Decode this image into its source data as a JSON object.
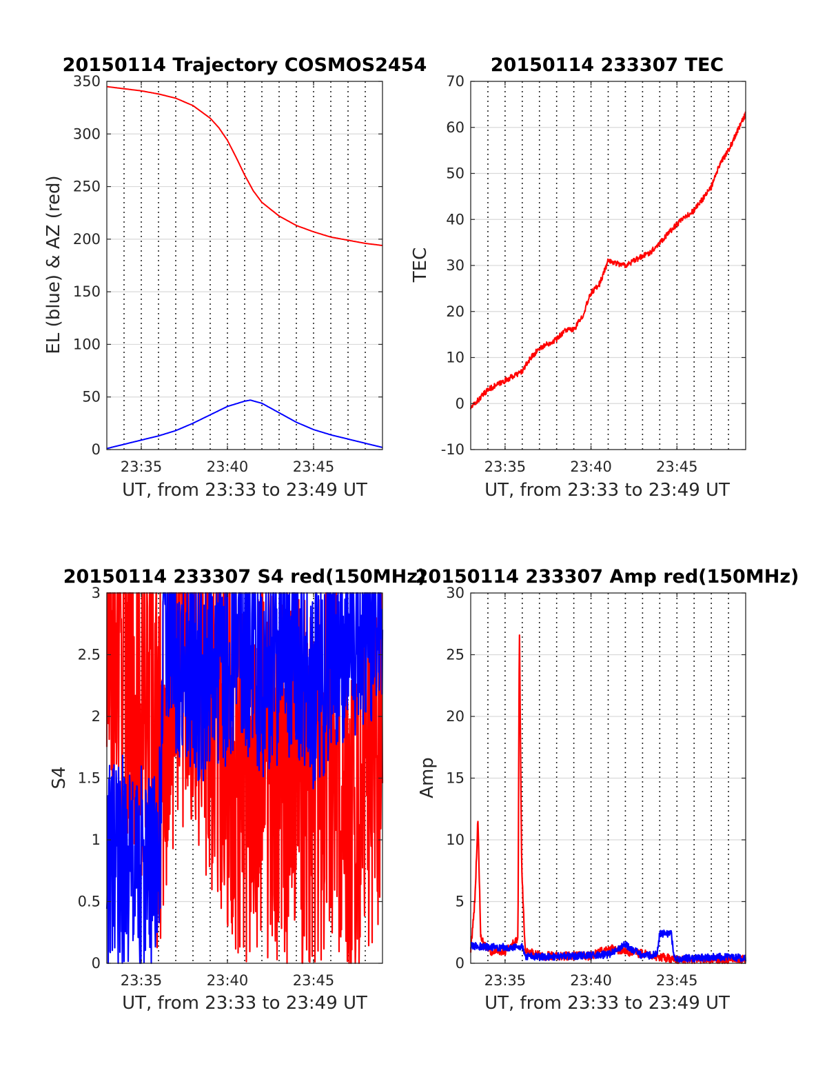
{
  "chart_data": [
    {
      "type": "line",
      "title": "20150114 Trajectory COSMOS2454",
      "xlabel": "UT, from 23:33 to 23:49 UT",
      "ylabel": "EL (blue) & AZ (red)",
      "xlim": [
        "23:33",
        "23:49"
      ],
      "ylim": [
        0,
        350
      ],
      "xticks": [
        "23:35",
        "23:40",
        "23:45"
      ],
      "yticks": [
        "0",
        "50",
        "100",
        "150",
        "200",
        "250",
        "300",
        "350"
      ],
      "grid": true,
      "series": [
        {
          "color": "#ff0000",
          "x": [
            "23:33",
            "23:34",
            "23:35",
            "23:36",
            "23:37",
            "23:38",
            "23:39",
            "23:39:30",
            "23:40",
            "23:40:30",
            "23:41",
            "23:41:30",
            "23:42",
            "23:43",
            "23:44",
            "23:45",
            "23:46",
            "23:47",
            "23:48",
            "23:49"
          ],
          "values": [
            345,
            343,
            341,
            338,
            334,
            327,
            315,
            306,
            294,
            278,
            261,
            246,
            235,
            222,
            213,
            207,
            202,
            199,
            196,
            194
          ]
        },
        {
          "color": "#0000ff",
          "x": [
            "23:33",
            "23:34",
            "23:35",
            "23:36",
            "23:37",
            "23:38",
            "23:39",
            "23:40",
            "23:41",
            "23:41:20",
            "23:42",
            "23:43",
            "23:44",
            "23:45",
            "23:46",
            "23:47",
            "23:48",
            "23:49"
          ],
          "values": [
            1,
            5,
            9,
            13,
            18,
            25,
            33,
            41,
            46,
            47,
            44,
            35,
            26,
            19,
            14,
            10,
            6,
            2
          ]
        }
      ]
    },
    {
      "type": "line",
      "title": "20150114 233307 TEC",
      "xlabel": "UT, from 23:33 to 23:49 UT",
      "ylabel": "TEC",
      "xlim": [
        "23:33",
        "23:49"
      ],
      "ylim": [
        -10,
        70
      ],
      "xticks": [
        "23:35",
        "23:40",
        "23:45"
      ],
      "yticks": [
        "-10",
        "0",
        "10",
        "20",
        "30",
        "40",
        "50",
        "60",
        "70"
      ],
      "grid": true,
      "series": [
        {
          "color": "#ff0000",
          "x": [
            "23:33",
            "23:34",
            "23:35",
            "23:36",
            "23:36:30",
            "23:37",
            "23:38",
            "23:38:30",
            "23:39",
            "23:39:30",
            "23:40",
            "23:40:30",
            "23:41",
            "23:42",
            "23:43",
            "23:43:30",
            "23:44",
            "23:45",
            "23:46",
            "23:47",
            "23:47:30",
            "23:48",
            "23:49"
          ],
          "values": [
            -1,
            3,
            5,
            7,
            10,
            12,
            14,
            16,
            16,
            19,
            24,
            26,
            31,
            30,
            32,
            33,
            35,
            39,
            42,
            47,
            52,
            55,
            63
          ]
        }
      ]
    },
    {
      "type": "line",
      "title": "20150114 233307 S4 red(150MHz)",
      "xlabel": "UT, from 23:33 to 23:49 UT",
      "ylabel": "S4",
      "xlim": [
        "23:33",
        "23:49"
      ],
      "ylim": [
        0,
        3
      ],
      "xticks": [
        "23:35",
        "23:40",
        "23:45"
      ],
      "yticks": [
        "0",
        "0.5",
        "1",
        "1.5",
        "2",
        "2.5",
        "3"
      ],
      "grid": true,
      "series": [
        {
          "color": "#ff0000",
          "x": [
            "23:33",
            "23:34",
            "23:35",
            "23:36",
            "23:37",
            "23:38",
            "23:39",
            "23:40",
            "23:41",
            "23:42",
            "23:43",
            "23:44",
            "23:45",
            "23:46",
            "23:47",
            "23:48",
            "23:49"
          ],
          "values": [
            2.4,
            2.6,
            2.3,
            1.6,
            2.7,
            2.6,
            2.2,
            1.9,
            1.5,
            1.7,
            1.4,
            1.6,
            1.3,
            1.8,
            1.2,
            1.6,
            2.0
          ]
        },
        {
          "color": "#0000ff",
          "x": [
            "23:33",
            "23:33:30",
            "23:34",
            "23:35",
            "23:36",
            "23:36:20",
            "23:37",
            "23:38",
            "23:39",
            "23:40",
            "23:41",
            "23:42",
            "23:43",
            "23:44",
            "23:45",
            "23:46",
            "23:47",
            "23:48",
            "23:49"
          ],
          "values": [
            0.8,
            0.75,
            0.8,
            0.72,
            0.7,
            2.7,
            2.6,
            2.3,
            2.4,
            2.5,
            2.6,
            2.4,
            2.5,
            2.6,
            2.3,
            2.5,
            2.7,
            2.8,
            2.9
          ]
        }
      ]
    },
    {
      "type": "line",
      "title": "20150114 233307 Amp red(150MHz)",
      "xlabel": "UT, from 23:33 to 23:49 UT",
      "ylabel": "Amp",
      "xlim": [
        "23:33",
        "23:49"
      ],
      "ylim": [
        0,
        30
      ],
      "xticks": [
        "23:35",
        "23:40",
        "23:45"
      ],
      "yticks": [
        "0",
        "5",
        "10",
        "15",
        "20",
        "25",
        "30"
      ],
      "grid": true,
      "series": [
        {
          "color": "#ff0000",
          "x": [
            "23:33",
            "23:33:15",
            "23:33:25",
            "23:33:35",
            "23:34",
            "23:35",
            "23:35:45",
            "23:35:50",
            "23:35:58",
            "23:36:10",
            "23:37",
            "23:40",
            "23:41",
            "23:45",
            "23:49"
          ],
          "values": [
            1.0,
            5.3,
            11.7,
            2.0,
            1.0,
            1.0,
            2.0,
            27.8,
            8.0,
            1.0,
            0.6,
            0.6,
            1.2,
            0.3,
            0.3
          ]
        },
        {
          "color": "#0000ff",
          "x": [
            "23:33",
            "23:34",
            "23:35",
            "23:36",
            "23:36:10",
            "23:37",
            "23:39",
            "23:41",
            "23:42",
            "23:43",
            "23:43:50",
            "23:44",
            "23:44:40",
            "23:44:50",
            "23:46",
            "23:47",
            "23:48",
            "23:49"
          ],
          "values": [
            1.4,
            1.3,
            1.3,
            1.3,
            0.6,
            0.5,
            0.6,
            0.7,
            1.5,
            0.6,
            0.7,
            2.4,
            2.4,
            0.4,
            0.4,
            0.5,
            0.5,
            0.4
          ]
        }
      ]
    }
  ]
}
